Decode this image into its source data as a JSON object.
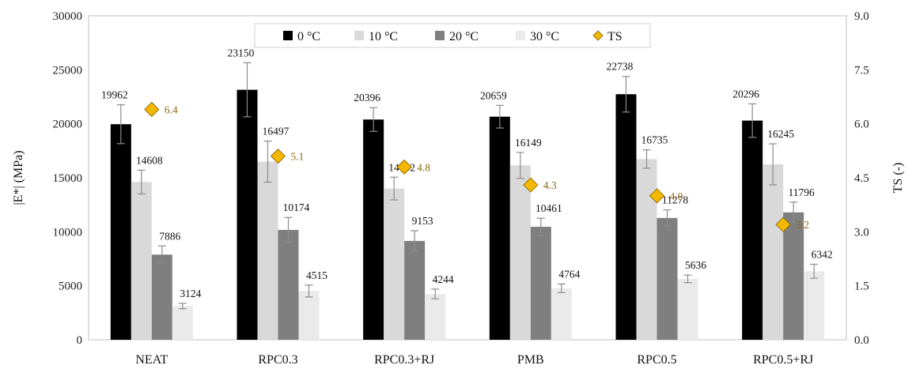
{
  "chart_data": {
    "type": "bar",
    "categories": [
      "NEAT",
      "RPC0.3",
      "RPC0.3+RJ",
      "PMB",
      "RPC0.5",
      "RPC0.5+RJ"
    ],
    "series": [
      {
        "name": "0 °C",
        "color": "#000000",
        "values": [
          19962,
          23150,
          20396,
          20659,
          22738,
          20296
        ],
        "errors": [
          1800,
          2500,
          1100,
          1050,
          1650,
          1550
        ]
      },
      {
        "name": "10 °C",
        "color": "#d9d9d9",
        "values": [
          14608,
          16497,
          14002,
          16149,
          16735,
          16245
        ],
        "errors": [
          1100,
          1900,
          1050,
          1200,
          850,
          1900
        ]
      },
      {
        "name": "20 °C",
        "color": "#7f7f7f",
        "values": [
          7886,
          10174,
          9153,
          10461,
          11278,
          11796
        ],
        "errors": [
          800,
          1150,
          950,
          800,
          750,
          950
        ]
      },
      {
        "name": "30 °C",
        "color": "#eaeaea",
        "values": [
          3124,
          4515,
          4244,
          4764,
          5636,
          6342
        ],
        "errors": [
          250,
          550,
          450,
          400,
          350,
          650
        ]
      }
    ],
    "ts_series": {
      "name": "TS",
      "color": "#f5b800",
      "values": [
        6.4,
        5.1,
        4.8,
        4.3,
        4.0,
        3.2
      ]
    },
    "ylabel": "|E*| (MPa)",
    "y2label": "TS (-)",
    "ylim": [
      0,
      30000
    ],
    "y2lim": [
      0,
      9.0
    ],
    "yticks": [
      "0",
      "5000",
      "10000",
      "15000",
      "20000",
      "25000",
      "30000"
    ],
    "y2ticks": [
      "0.0",
      "1.5",
      "3.0",
      "4.5",
      "6.0",
      "7.5",
      "9.0"
    ],
    "legend_position": "top-center",
    "grid": false
  }
}
